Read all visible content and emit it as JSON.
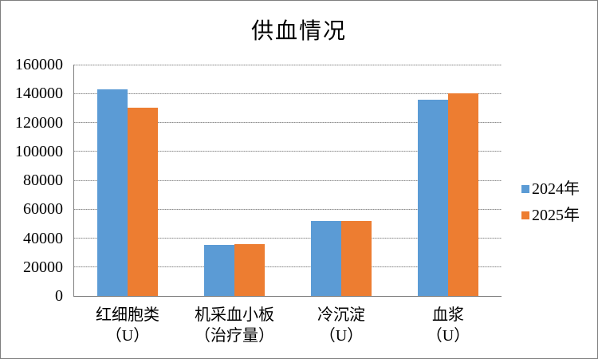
{
  "window": {
    "background": "#ffffff",
    "border_color": "#7f7f7f"
  },
  "chart_data": {
    "type": "bar",
    "title": "供血情况",
    "categories": [
      "红细胞类（U）",
      "机采血小板（治疗量）",
      "冷沉淀（U）",
      "血浆（U）"
    ],
    "category_label_lines": [
      [
        "红细胞类",
        "（U）"
      ],
      [
        "机采血小板",
        "（治疗量）"
      ],
      [
        "冷沉淀",
        "（U）"
      ],
      [
        "血浆",
        "（U）"
      ]
    ],
    "series": [
      {
        "name": "2024年",
        "color": "#5B9BD5",
        "values": [
          143000,
          35500,
          52000,
          135500
        ]
      },
      {
        "name": "2025年",
        "color": "#ED7D31",
        "values": [
          130000,
          36000,
          52000,
          140300
        ]
      }
    ],
    "ylim": [
      0,
      160000
    ],
    "yticks": [
      0,
      20000,
      40000,
      60000,
      80000,
      100000,
      120000,
      140000,
      160000
    ],
    "xlabel": "",
    "ylabel": "",
    "grid": true,
    "legend_position": "right",
    "gridline_color": "#a6a6a6",
    "axis_color": "#7f7f7f",
    "text_color": "#000000"
  }
}
